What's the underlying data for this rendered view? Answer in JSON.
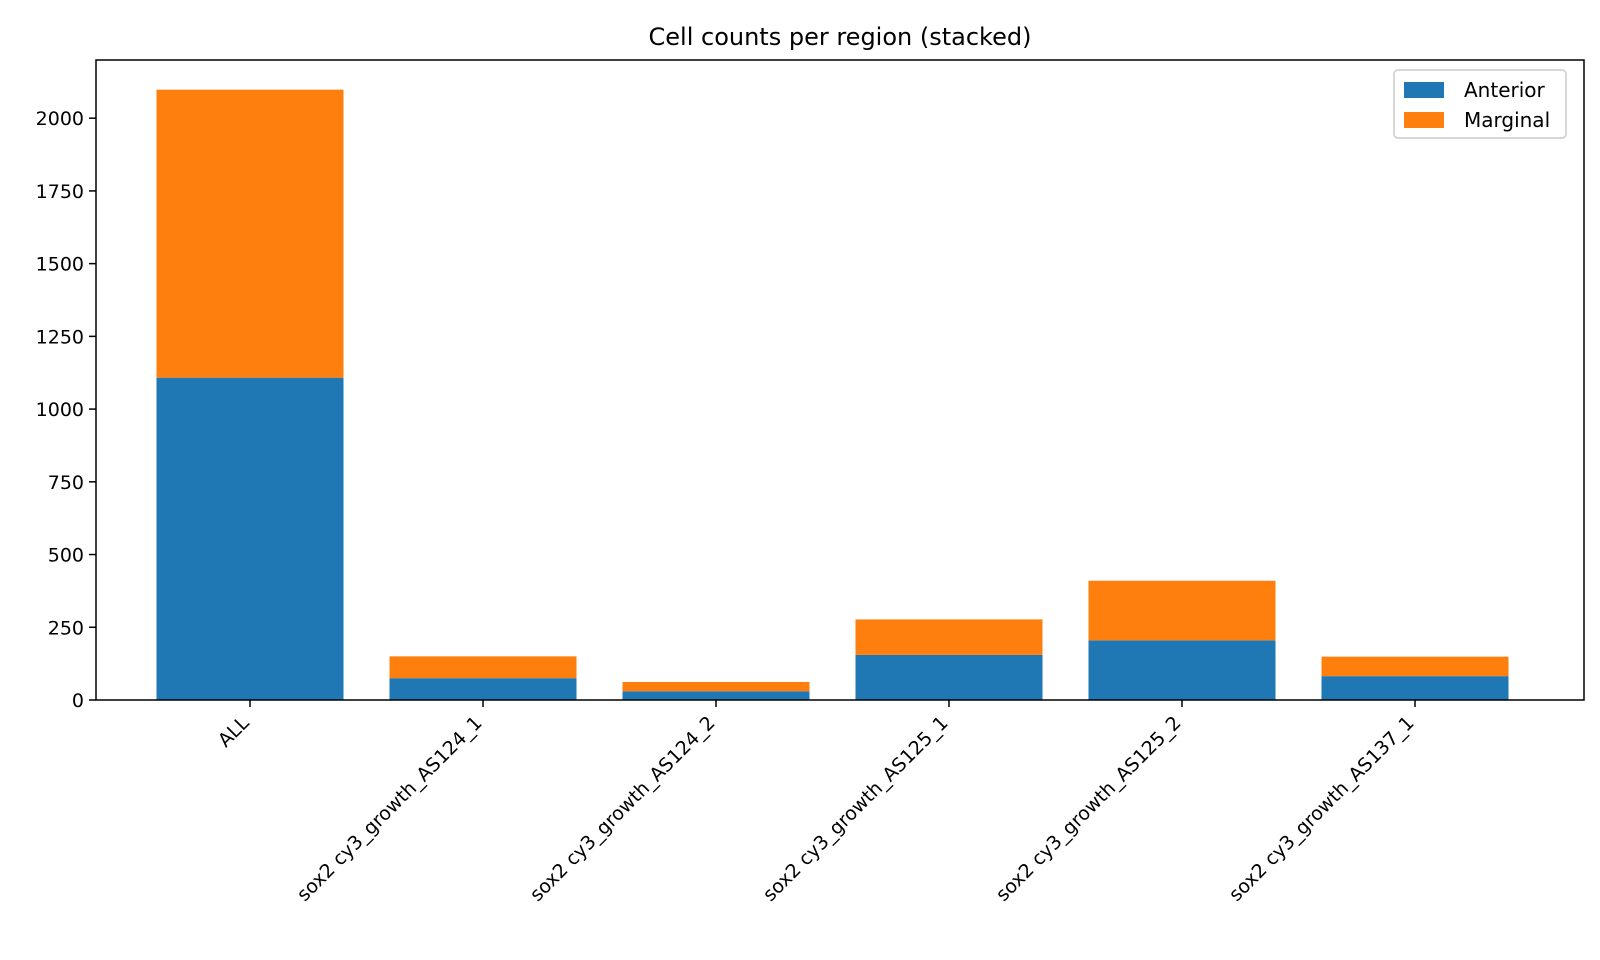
{
  "chart_data": {
    "type": "bar",
    "stacked": true,
    "title": "Cell counts per region (stacked)",
    "xlabel": "",
    "ylabel": "",
    "categories": [
      "ALL",
      "sox2 cy3_growth_AS124_1",
      "sox2 cy3_growth_AS124_2",
      "sox2 cy3_growth_AS125_1",
      "sox2 cy3_growth_AS125_2",
      "sox2 cy3_growth_AS137_1"
    ],
    "series": [
      {
        "name": "Anterior",
        "color": "#1f77b4",
        "values": [
          1108,
          75,
          30,
          155,
          205,
          82
        ]
      },
      {
        "name": "Marginal",
        "color": "#ff7f0e",
        "values": [
          990,
          75,
          32,
          122,
          205,
          67
        ]
      }
    ],
    "ylim": [
      0,
      2200
    ],
    "yticks": [
      0,
      250,
      500,
      750,
      1000,
      1250,
      1500,
      1750,
      2000
    ],
    "grid": false,
    "legend_position": "top-right"
  }
}
